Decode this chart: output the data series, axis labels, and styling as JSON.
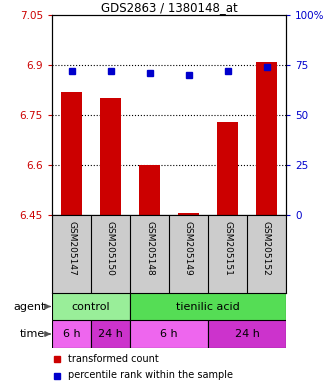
{
  "title": "GDS2863 / 1380148_at",
  "samples": [
    "GSM205147",
    "GSM205150",
    "GSM205148",
    "GSM205149",
    "GSM205151",
    "GSM205152"
  ],
  "bar_values": [
    6.82,
    6.8,
    6.6,
    6.455,
    6.73,
    6.91
  ],
  "bar_bottom": 6.45,
  "percentile_values": [
    72,
    72,
    71,
    70,
    72,
    74
  ],
  "percentile_scale_min": 0,
  "percentile_scale_max": 100,
  "ylim_left": [
    6.45,
    7.05
  ],
  "yticks_left": [
    6.45,
    6.6,
    6.75,
    6.9,
    7.05
  ],
  "yticks_right": [
    0,
    25,
    50,
    75,
    100
  ],
  "bar_color": "#cc0000",
  "dot_color": "#0000cc",
  "agent_labels": [
    {
      "text": "control",
      "start": 0,
      "end": 2,
      "color": "#99ee99"
    },
    {
      "text": "tienilic acid",
      "start": 2,
      "end": 6,
      "color": "#55dd55"
    }
  ],
  "time_labels": [
    {
      "text": "6 h",
      "start": 0,
      "end": 1,
      "color": "#ee66ee"
    },
    {
      "text": "24 h",
      "start": 1,
      "end": 2,
      "color": "#cc33cc"
    },
    {
      "text": "6 h",
      "start": 2,
      "end": 4,
      "color": "#ee66ee"
    },
    {
      "text": "24 h",
      "start": 4,
      "end": 6,
      "color": "#cc33cc"
    }
  ],
  "label_bg_color": "#cccccc",
  "tick_color_left": "#cc0000",
  "tick_color_right": "#0000cc"
}
